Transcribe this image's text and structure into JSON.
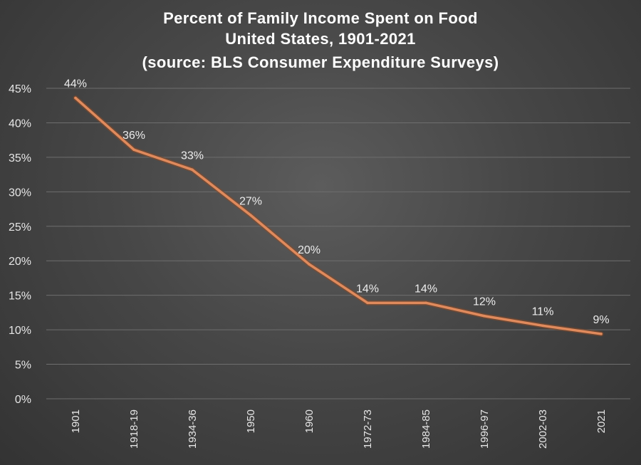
{
  "chart_data": {
    "type": "line",
    "title_lines": [
      "Percent of Family Income Spent on Food",
      "United States, 1901-2021",
      "(source: BLS Consumer Expenditure Surveys)"
    ],
    "categories": [
      "1901",
      "1918-19",
      "1934-36",
      "1950",
      "1960",
      "1972-73",
      "1984-85",
      "1996-97",
      "2002-03",
      "2021"
    ],
    "series": [
      {
        "name": "Percent of Family Income Spent on Food",
        "values": [
          43.6,
          36.1,
          33.2,
          26.6,
          19.5,
          13.9,
          13.9,
          12.0,
          10.6,
          9.4
        ],
        "labels": [
          "44%",
          "36%",
          "33%",
          "27%",
          "20%",
          "14%",
          "14%",
          "12%",
          "11%",
          "9%"
        ]
      }
    ],
    "y_ticks": [
      "0%",
      "5%",
      "10%",
      "15%",
      "20%",
      "25%",
      "30%",
      "35%",
      "40%",
      "45%"
    ],
    "ylim": [
      0,
      45
    ],
    "y_step": 5,
    "xlabel": "",
    "ylabel": "",
    "grid": true,
    "legend": "none",
    "colors": {
      "line": "#e08a5c",
      "line_glow": "#8a4a28",
      "grid": "#6e6e6e",
      "text": "#e6e6e6"
    }
  }
}
